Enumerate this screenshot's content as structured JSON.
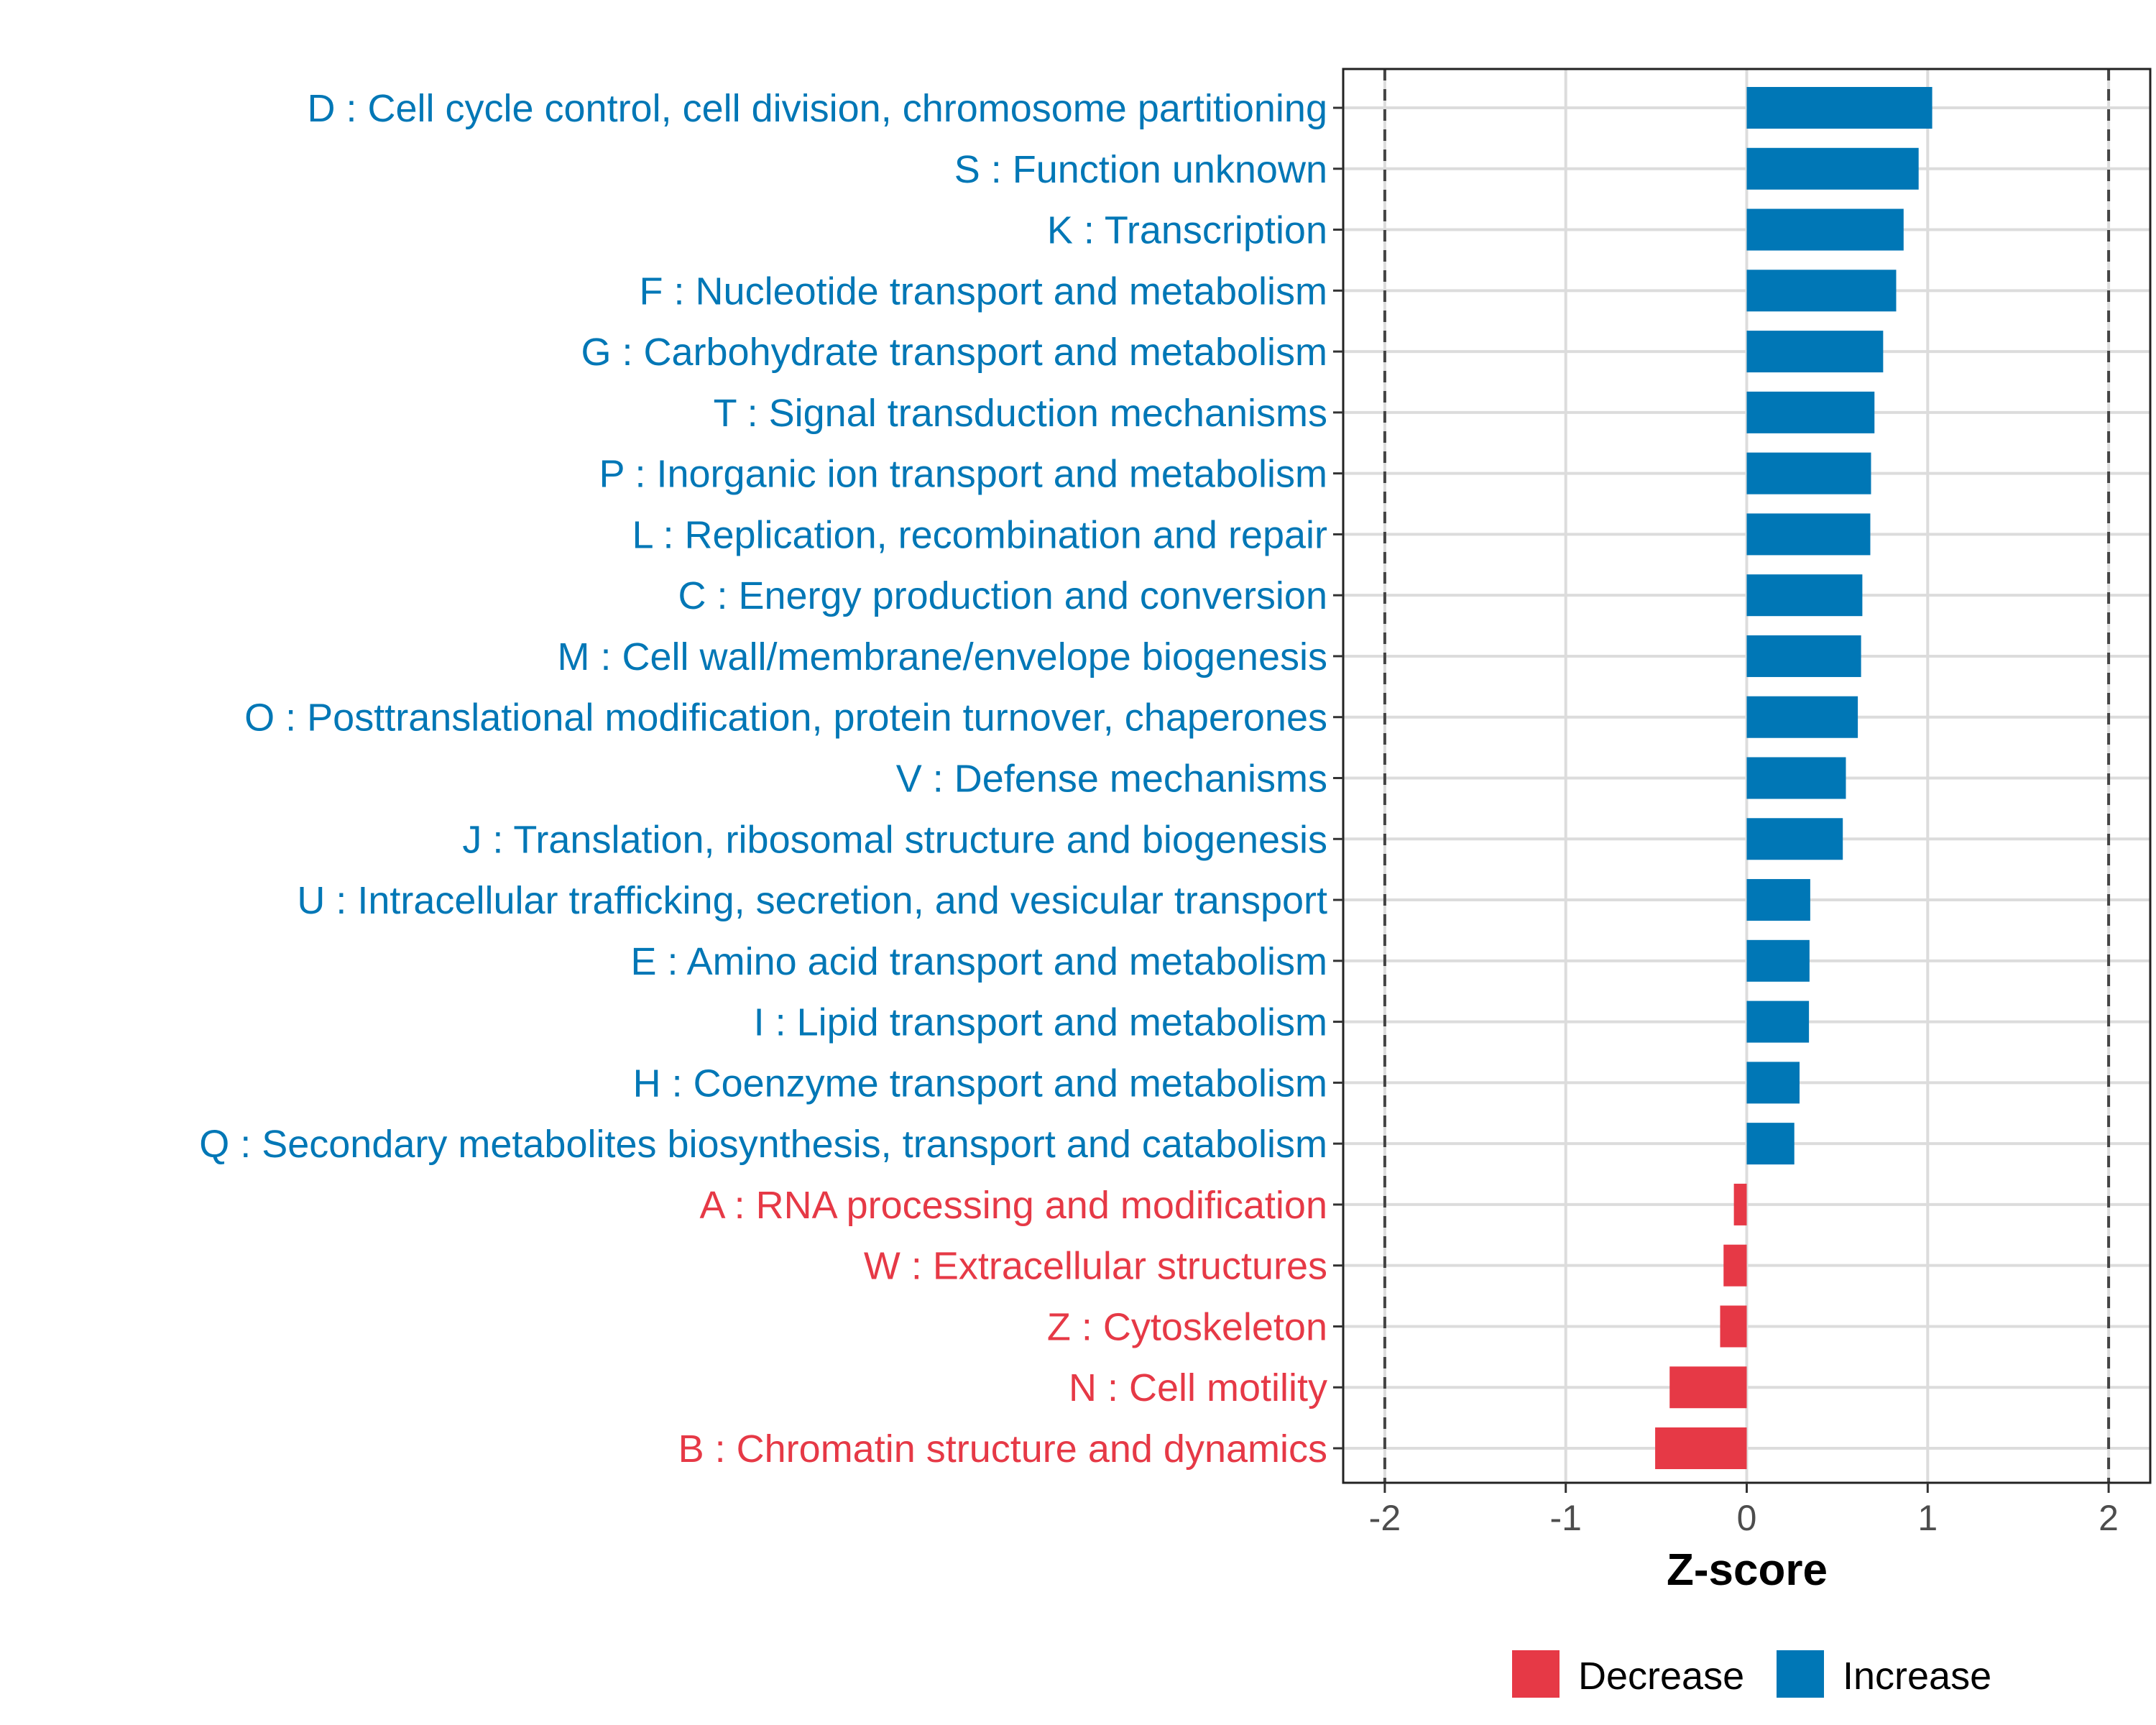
{
  "chart_data": {
    "type": "bar",
    "orientation": "horizontal",
    "title": "",
    "xlabel": "Z-score",
    "ylabel": "",
    "xlim": [
      -2.23,
      2.23
    ],
    "xticks": [
      -2,
      -1,
      0,
      1,
      2
    ],
    "xtick_labels": [
      "-2",
      "-1",
      "0",
      "1",
      "2"
    ],
    "reference_lines": [
      -2,
      2
    ],
    "grid": true,
    "colors": {
      "Decrease": "#E63946",
      "Increase": "#0077B6"
    },
    "legend": {
      "placement": "bottom",
      "entries": [
        "Decrease",
        "Increase"
      ]
    },
    "categories": [
      "D : Cell cycle control, cell division, chromosome partitioning",
      "S : Function unknown",
      "K : Transcription",
      "F : Nucleotide transport and metabolism",
      "G : Carbohydrate transport and metabolism",
      "T : Signal transduction mechanisms",
      "P : Inorganic ion transport and metabolism",
      "L : Replication, recombination and repair",
      "C : Energy production and conversion",
      "M : Cell wall/membrane/envelope biogenesis",
      "O : Posttranslational modification, protein turnover, chaperones",
      "V : Defense mechanisms",
      "J : Translation, ribosomal structure and biogenesis",
      "U : Intracellular trafficking, secretion, and vesicular transport",
      "E : Amino acid transport and metabolism",
      "I : Lipid transport and metabolism",
      "H : Coenzyme transport and metabolism",
      "Q : Secondary metabolites biosynthesis, transport and catabolism",
      "A : RNA processing and modification",
      "W : Extracellular structures",
      "Z : Cytoskeleton",
      "N : Cell motility",
      "B : Chromatin structure and dynamics"
    ],
    "values": [
      1.025,
      0.95,
      0.867,
      0.826,
      0.754,
      0.706,
      0.687,
      0.683,
      0.639,
      0.632,
      0.614,
      0.548,
      0.531,
      0.351,
      0.347,
      0.344,
      0.292,
      0.263,
      -0.071,
      -0.128,
      -0.147,
      -0.426,
      -0.506
    ]
  }
}
